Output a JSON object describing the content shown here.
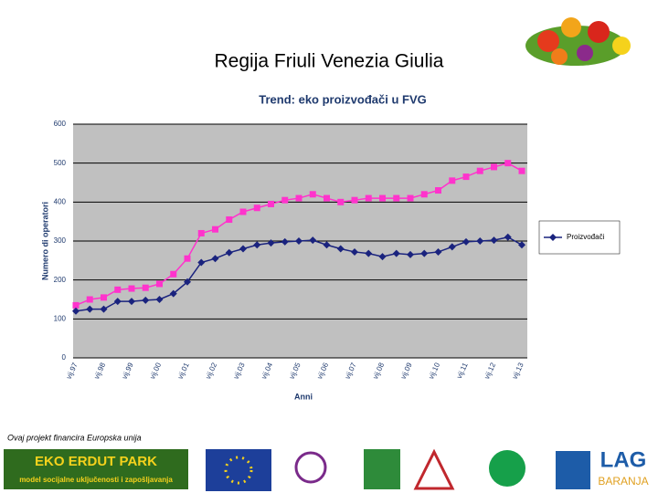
{
  "slide": {
    "title": "Regija Friuli Venezia Giulia",
    "footnote": "Ovaj projekt financira Europska unija",
    "logo_park": "EKO ERDUT PARK",
    "logo_park_sub": "model socijalne uključenosti i zapošljavanja",
    "logo_lag": "LAG",
    "logo_lag_sub": "BARANJA"
  },
  "chart_data": {
    "type": "line",
    "title": "Trend: eko proizvođači u FVG",
    "y_label": "Numero di operatori",
    "x_label": "Anni",
    "categories": [
      "vij.97",
      null,
      "vij.98",
      null,
      "vij.99",
      null,
      "vij.00",
      null,
      "vij.01",
      null,
      "vij.02",
      null,
      "vij.03",
      null,
      "vij.04",
      null,
      "vij.05",
      null,
      "vij.06",
      null,
      "vij.07",
      null,
      "vij.08",
      null,
      "vij.09",
      null,
      "vij.10",
      null,
      "vij.11",
      null,
      "vij.12",
      null,
      "vij.13"
    ],
    "series": [
      {
        "name": "Proizvođači",
        "color": "#1a237e",
        "marker": "diamond",
        "values": [
          120,
          125,
          125,
          145,
          145,
          148,
          150,
          165,
          195,
          245,
          255,
          270,
          280,
          290,
          295,
          298,
          300,
          302,
          290,
          280,
          272,
          268,
          260,
          268,
          265,
          268,
          272,
          285,
          298,
          300,
          302,
          310,
          290
        ]
      },
      {
        "color": "#ff33cc",
        "marker": "square",
        "values": [
          135,
          150,
          155,
          175,
          178,
          180,
          190,
          215,
          255,
          320,
          330,
          355,
          375,
          385,
          395,
          405,
          410,
          420,
          410,
          400,
          405,
          410,
          410,
          410,
          410,
          420,
          430,
          455,
          465,
          480,
          490,
          500,
          480
        ]
      }
    ],
    "ylim": [
      0,
      600
    ],
    "yticks": [
      0,
      100,
      200,
      300,
      400,
      500,
      600
    ],
    "grid": true,
    "legend": "right"
  }
}
